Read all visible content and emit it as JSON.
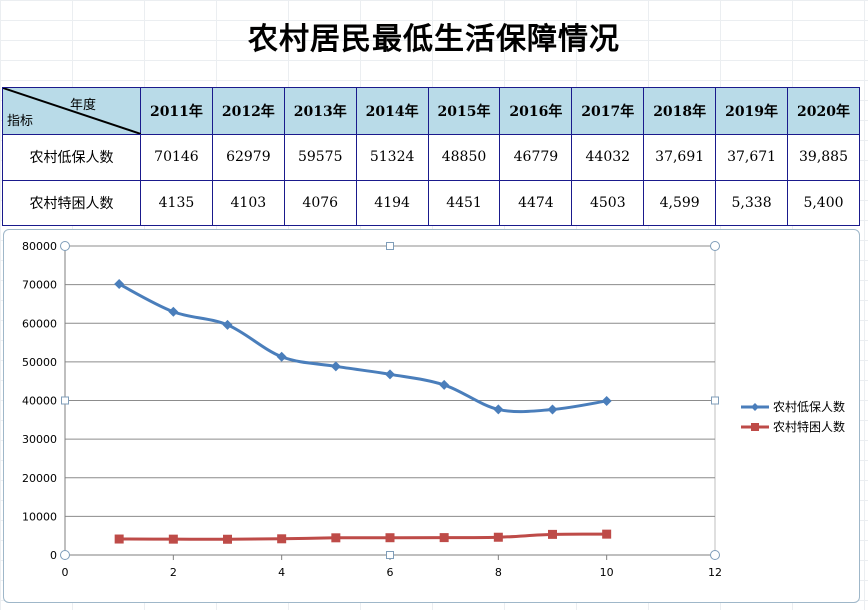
{
  "title": "农村居民最低生活保障情况",
  "table": {
    "corner_top": "年度",
    "corner_bottom": "指标",
    "years": [
      "2011年",
      "2012年",
      "2013年",
      "2014年",
      "2015年",
      "2016年",
      "2017年",
      "2018年",
      "2019年",
      "2020年"
    ],
    "rows": [
      {
        "label": "农村低保人数",
        "cells": [
          "70146",
          "62979",
          "59575",
          "51324",
          "48850",
          "46779",
          "44032",
          "37,691",
          "37,671",
          "39,885"
        ]
      },
      {
        "label": "农村特困人数",
        "cells": [
          "4135",
          "4103",
          "4076",
          "4194",
          "4451",
          "4474",
          "4503",
          "4,599",
          "5,338",
          "5,400"
        ]
      }
    ]
  },
  "colors": {
    "series1": "#4a7ebb",
    "series2": "#be4b48",
    "header_bg": "#b9dbe8",
    "year_text": "#e00000"
  },
  "chart_data": {
    "type": "scatter",
    "title": "",
    "xlabel": "",
    "ylabel": "",
    "xlim": [
      0,
      12
    ],
    "ylim": [
      0,
      80000
    ],
    "x_ticks": [
      "0",
      "2",
      "4",
      "6",
      "8",
      "10",
      "12"
    ],
    "y_ticks": [
      "0",
      "10000",
      "20000",
      "30000",
      "40000",
      "50000",
      "60000",
      "70000",
      "80000"
    ],
    "grid": "horizontal",
    "legend_position": "right",
    "series": [
      {
        "name": "农村低保人数",
        "x": [
          1,
          2,
          3,
          4,
          5,
          6,
          7,
          8,
          9,
          10
        ],
        "y": [
          70146,
          62979,
          59575,
          51324,
          48850,
          46779,
          44032,
          37691,
          37671,
          39885
        ]
      },
      {
        "name": "农村特困人数",
        "x": [
          1,
          2,
          3,
          4,
          5,
          6,
          7,
          8,
          9,
          10
        ],
        "y": [
          4135,
          4103,
          4076,
          4194,
          4451,
          4474,
          4503,
          4599,
          5338,
          5400
        ]
      }
    ]
  }
}
